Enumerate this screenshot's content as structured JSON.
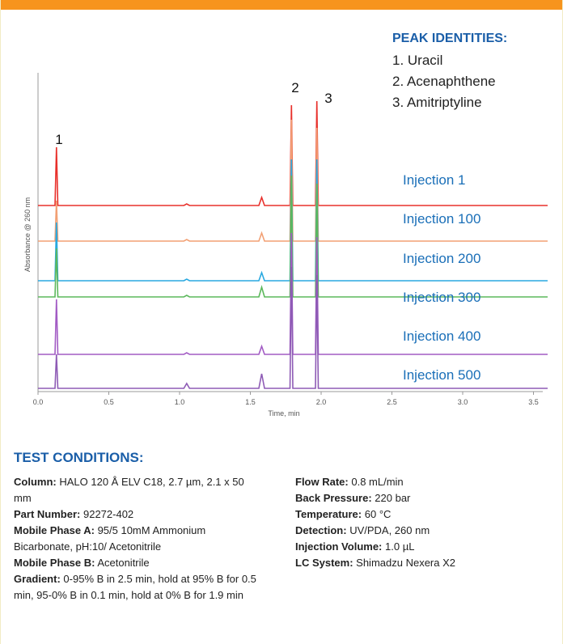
{
  "chart_data": {
    "type": "line",
    "xlabel": "Time, min",
    "ylabel": "Absorbance @ 260 nm",
    "xlim": [
      0,
      3.6
    ],
    "xticks": [
      {
        "value": 0,
        "label": "0.0"
      },
      {
        "value": 0.5,
        "label": "0.5"
      },
      {
        "value": 1,
        "label": "1.0"
      },
      {
        "value": 1.5,
        "label": "1.5"
      },
      {
        "value": 2,
        "label": "2.0"
      },
      {
        "value": 2.5,
        "label": "2.5"
      },
      {
        "value": 3,
        "label": "3.0"
      },
      {
        "value": 3.5,
        "label": "3.5"
      }
    ],
    "x": [
      0,
      0.12,
      0.13,
      0.14,
      1.03,
      1.05,
      1.07,
      1.56,
      1.58,
      1.6,
      1.78,
      1.79,
      1.8,
      1.96,
      1.97,
      1.98,
      3.6
    ],
    "series": [
      {
        "name": "Injection 1",
        "color": "#e8302b",
        "values": [
          0,
          0,
          72,
          0,
          0,
          2,
          0,
          0,
          10,
          0,
          0,
          124,
          0,
          0,
          129,
          0,
          0
        ]
      },
      {
        "name": "Injection 100",
        "color": "#f2a074",
        "values": [
          0,
          0,
          50,
          0,
          0,
          2,
          0,
          0,
          10,
          0,
          0,
          150,
          0,
          0,
          140,
          0,
          0
        ]
      },
      {
        "name": "Injection 200",
        "color": "#29a9e0",
        "values": [
          0,
          0,
          72,
          0,
          0,
          2,
          0,
          0,
          10,
          0,
          0,
          150,
          0,
          0,
          150,
          0,
          0
        ]
      },
      {
        "name": "Injection 300",
        "color": "#5cb85c",
        "values": [
          0,
          0,
          60,
          0,
          0,
          2,
          0,
          0,
          12,
          0,
          0,
          150,
          0,
          0,
          140,
          0,
          0
        ]
      },
      {
        "name": "Injection 400",
        "color": "#a25bc4",
        "values": [
          0,
          0,
          68,
          0,
          0,
          2,
          0,
          0,
          10,
          0,
          0,
          150,
          0,
          0,
          145,
          0,
          0
        ]
      },
      {
        "name": "Injection 500",
        "color": "#8e5bb5",
        "values": [
          0,
          0,
          42,
          0,
          0,
          6,
          0,
          0,
          18,
          0,
          0,
          150,
          0,
          0,
          140,
          0,
          0
        ]
      }
    ],
    "peak_labels": [
      "1",
      "2",
      "3"
    ]
  },
  "peak_identities": {
    "title": "PEAK IDENTITIES:",
    "items": [
      "1. Uracil",
      "2. Acenaphthene",
      "3. Amitriptyline"
    ]
  },
  "test_conditions": {
    "title": "TEST CONDITIONS:",
    "left": [
      {
        "label": "Column:",
        "value": "HALO 120 Å ELV C18, 2.7 µm, 2.1 x 50 mm"
      },
      {
        "label": "Part Number:",
        "value": "92272-402"
      },
      {
        "label": "Mobile Phase A:",
        "value": "95/5 10mM Ammonium Bicarbonate, pH:10/ Acetonitrile"
      },
      {
        "label": "Mobile Phase B:",
        "value": "Acetonitrile"
      },
      {
        "label": "Gradient:",
        "value": "0-95% B in 2.5 min, hold at 95% B for 0.5 min, 95-0% B in 0.1 min, hold at 0% B for 1.9 min"
      }
    ],
    "right": [
      {
        "label": "Flow Rate:",
        "value": "0.8 mL/min"
      },
      {
        "label": "Back Pressure:",
        "value": "220 bar"
      },
      {
        "label": "Temperature:",
        "value": "60 °C"
      },
      {
        "label": "Detection:",
        "value": "UV/PDA, 260 nm"
      },
      {
        "label": "Injection Volume:",
        "value": "1.0 µL"
      },
      {
        "label": "LC System:",
        "value": "Shimadzu Nexera X2"
      }
    ]
  }
}
